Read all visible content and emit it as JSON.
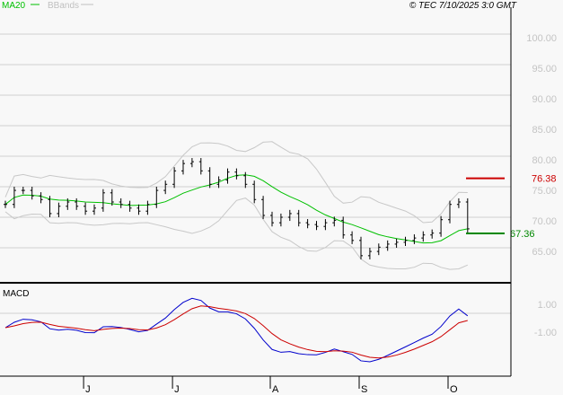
{
  "legend": {
    "ma_label": "MA20",
    "bb_label": "BBands",
    "ma_color": "#00c000",
    "bb_color": "#c0c0c0"
  },
  "copyright": "© TEC 7/10/2025 3:0 GMT",
  "chart_data": [
    {
      "type": "ohlc-bar",
      "panel": "price",
      "yticks": [
        "100.00",
        "95.00",
        "90.00",
        "85.00",
        "80.00",
        "75.00",
        "70.00",
        "65.00"
      ],
      "ytick_values": [
        100,
        95,
        90,
        85,
        80,
        75,
        70,
        65
      ],
      "ylim": [
        62,
        104
      ],
      "closes": [
        72.1,
        74.4,
        74.4,
        73.5,
        72.9,
        70.6,
        71.8,
        72.5,
        71.8,
        71.0,
        71.5,
        74.0,
        72.5,
        72.1,
        71.5,
        71.0,
        72.1,
        74.4,
        75.4,
        77.6,
        78.8,
        79.1,
        77.6,
        75.4,
        76.1,
        77.4,
        76.8,
        75.4,
        72.9,
        70.3,
        69.1,
        70.0,
        70.6,
        69.1,
        68.8,
        68.5,
        69.1,
        69.5,
        67.1,
        66.2,
        63.7,
        64.4,
        65.1,
        65.6,
        65.9,
        66.2,
        66.6,
        67.1,
        67.4,
        69.6,
        72.1,
        72.5,
        68.1
      ],
      "indicators": [
        "MA20",
        "BBands"
      ],
      "markers": [
        {
          "label": "76.38",
          "value": 76.38,
          "color": "#cc0000"
        },
        {
          "label": "67.36",
          "value": 67.36,
          "color": "#008800"
        }
      ],
      "xticks": [
        {
          "label": "J",
          "index": 9
        },
        {
          "label": "J",
          "index": 19
        },
        {
          "label": "A",
          "index": 30
        },
        {
          "label": "S",
          "index": 40
        },
        {
          "label": "O",
          "index": 50
        }
      ]
    },
    {
      "type": "line",
      "panel": "macd",
      "title": "MACD",
      "yticks": [
        "1.00",
        "-1.00"
      ],
      "ytick_values": [
        1,
        -1
      ],
      "series": [
        {
          "line": "macd",
          "color": "#0000cc"
        },
        {
          "line": "signal",
          "color": "#cc0000"
        }
      ]
    }
  ]
}
